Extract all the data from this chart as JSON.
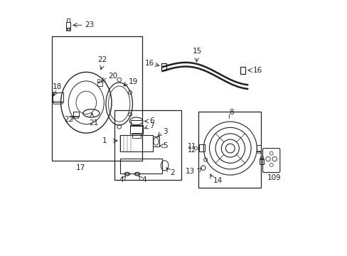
{
  "background_color": "#ffffff",
  "gray": "#222222",
  "fs": 7.5,
  "lw": 0.8
}
